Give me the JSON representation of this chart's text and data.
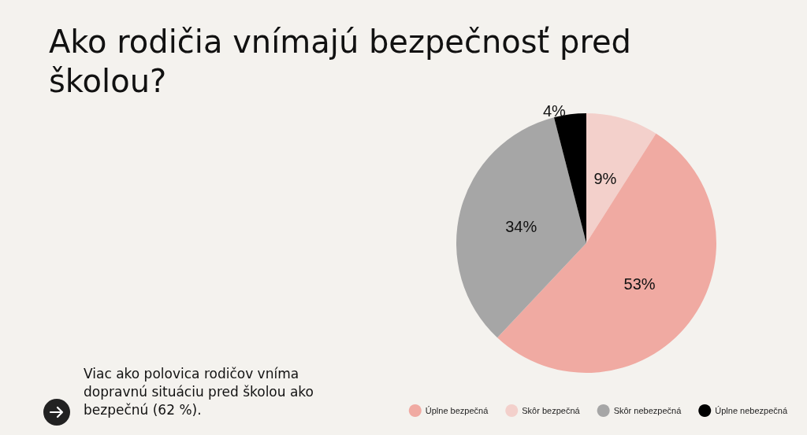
{
  "chart_data": {
    "type": "pie",
    "title": "Ako rodičia vnímajú bezpečnosť pred školou?",
    "categories": [
      "Skôr bezpečná",
      "Úplne bezpečná",
      "Skôr nebezpečná",
      "Úplne nebezpečná"
    ],
    "values": [
      9,
      53,
      34,
      4
    ],
    "colors": [
      "#f3d0cb",
      "#f0aaa2",
      "#a6a6a6",
      "#000000"
    ],
    "value_labels": [
      "9%",
      "53%",
      "34%",
      "4%"
    ],
    "legend": "bottom right",
    "annotations": [
      "Viac ako polovica rodičov vníma dopravnú situáciu pred školou ako bezpečnú (62 %)."
    ]
  }
}
